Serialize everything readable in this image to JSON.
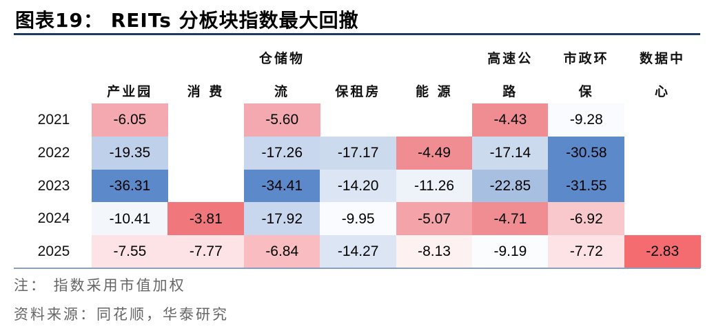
{
  "title": "图表19： REITs 分板块指数最大回撤",
  "chart_data": {
    "type": "table",
    "columns": [
      {
        "line1": "",
        "line2": "产业园"
      },
      {
        "line1": "",
        "line2": "消 费"
      },
      {
        "line1": "仓储物",
        "line2": "流"
      },
      {
        "line1": "",
        "line2": "保租房"
      },
      {
        "line1": "",
        "line2": "能 源"
      },
      {
        "line1": "高速公",
        "line2": "路"
      },
      {
        "line1": "市政环",
        "line2": "保"
      },
      {
        "line1": "数据中",
        "line2": "心"
      }
    ],
    "years": [
      "2021",
      "2022",
      "2023",
      "2024",
      "2025"
    ],
    "rows": [
      [
        "-6.05",
        "",
        "-5.60",
        "",
        "",
        "-4.43",
        "-9.28",
        ""
      ],
      [
        "-19.35",
        "",
        "-17.26",
        "-17.17",
        "-4.49",
        "-17.14",
        "-30.58",
        ""
      ],
      [
        "-36.31",
        "",
        "-34.41",
        "-14.20",
        "-11.26",
        "-22.85",
        "-31.55",
        ""
      ],
      [
        "-10.41",
        "-3.81",
        "-17.92",
        "-9.95",
        "-5.07",
        "-4.71",
        "-6.92",
        ""
      ],
      [
        "-7.55",
        "-7.77",
        "-6.84",
        "-14.27",
        "-8.13",
        "-9.19",
        "-7.72",
        "-2.83"
      ]
    ],
    "colors": [
      [
        "#f4a9b0",
        "",
        "#f4a9b0",
        "",
        "",
        "#f08d92",
        "#fafbfe",
        ""
      ],
      [
        "#bfd1ea",
        "",
        "#c8d7ed",
        "#ccdaee",
        "#f08d92",
        "#ccdaee",
        "#5b89c9",
        ""
      ],
      [
        "#5b89c9",
        "",
        "#5b89c9",
        "#dbe5f3",
        "#eef2f9",
        "#a7c0e2",
        "#5b89c9",
        ""
      ],
      [
        "#f3f6fb",
        "#f0777b",
        "#c8d7ed",
        "#fafbfe",
        "#f4a3a8",
        "#f08d92",
        "#f9c8cc",
        ""
      ],
      [
        "#fde3e6",
        "#fde3e6",
        "#f8bcc1",
        "#dbe5f3",
        "#fdf1f2",
        "#fbfcfe",
        "#fde3e6",
        "#f46c70"
      ]
    ]
  },
  "notes": [
    "注：  指数采用市值加权",
    "资料来源：同花顺，华泰研究"
  ]
}
